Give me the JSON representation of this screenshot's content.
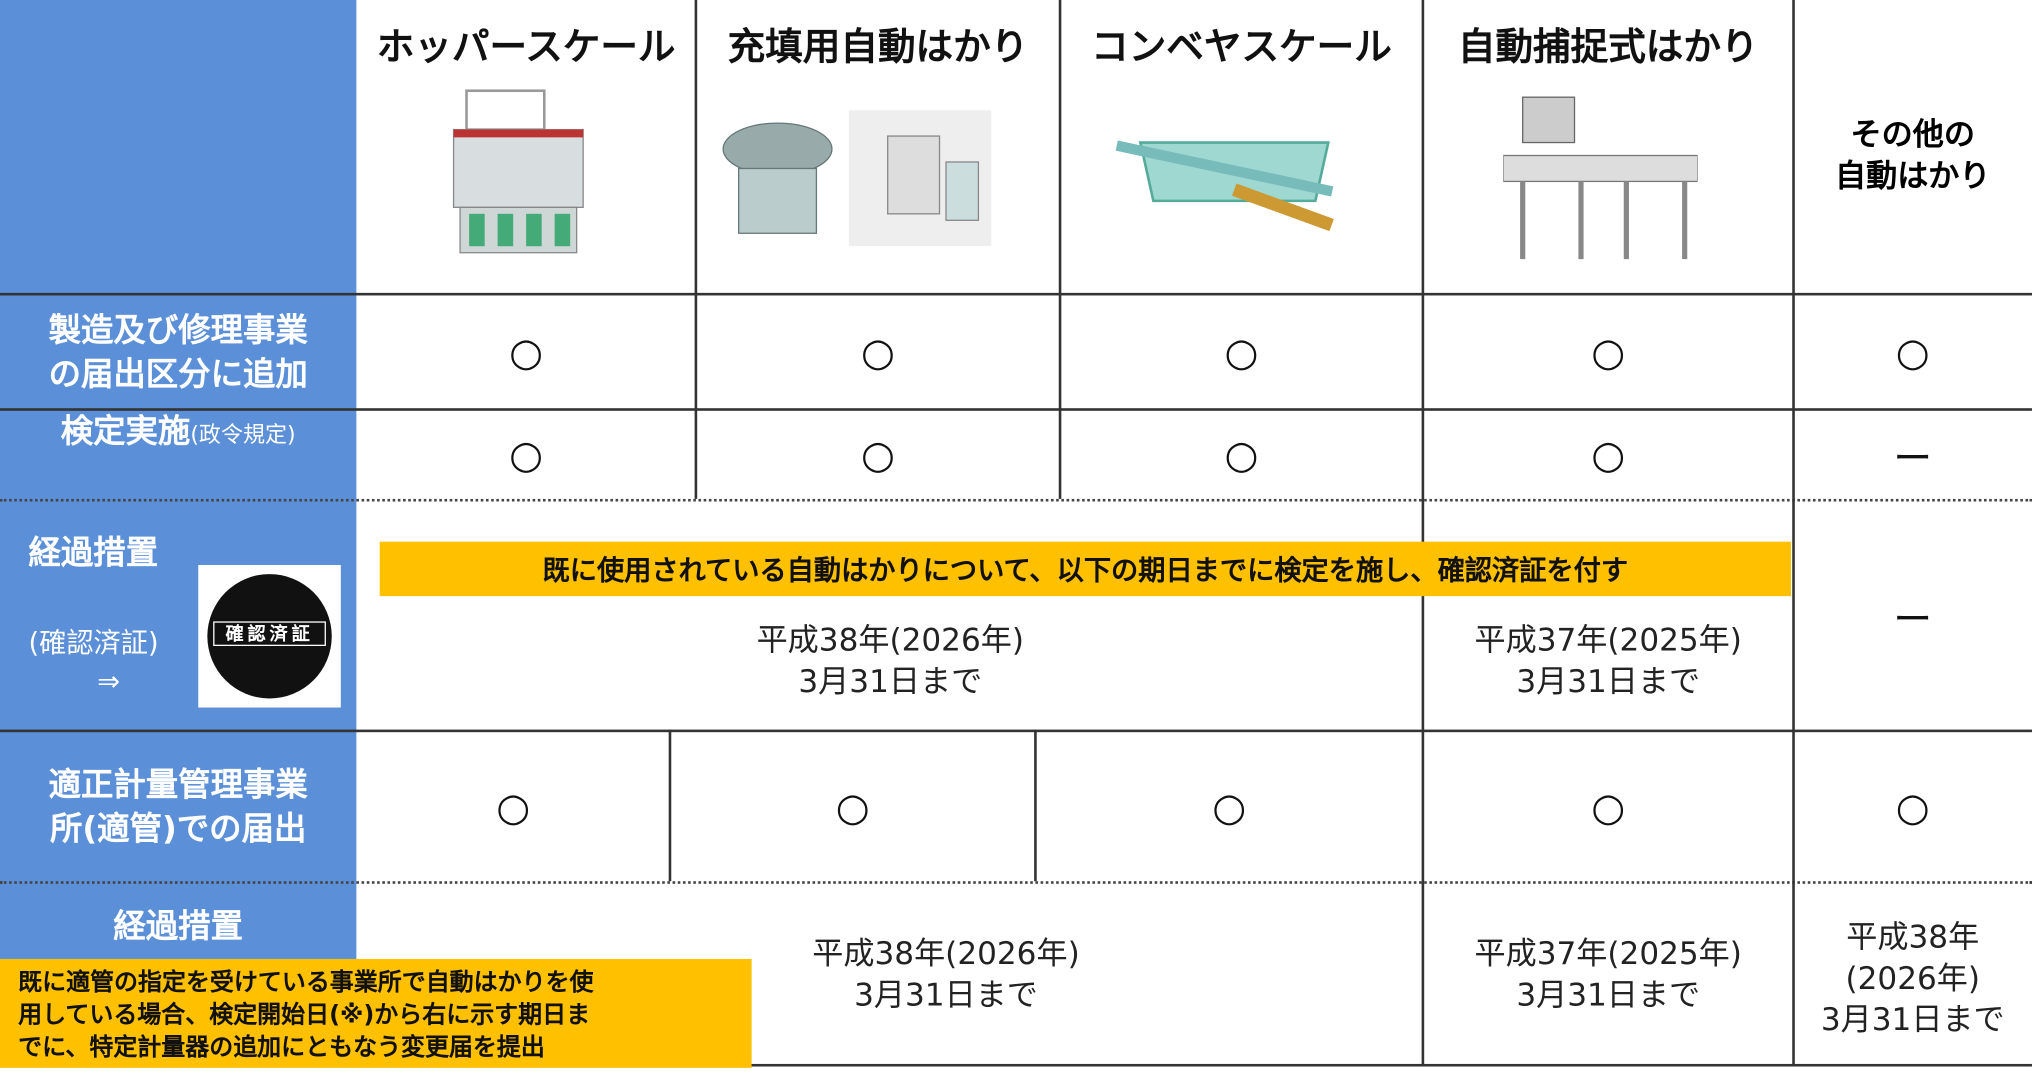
{
  "header": {
    "columns": [
      [
        "ホッパースケール"
      ],
      [
        "充填用自動はかり"
      ],
      [
        "コンベヤスケール"
      ],
      [
        "自動捕捉式はかり"
      ],
      [
        "その他の",
        "自動はかり"
      ]
    ]
  },
  "rows": [
    {
      "label": [
        "製造及び修理事業",
        "の届出区分に追加"
      ],
      "cells": [
        "○",
        "○",
        "○",
        "○",
        "○"
      ]
    },
    {
      "label": "検定実施",
      "label_note": "(政令規定)",
      "cells": [
        "○",
        "○",
        "○",
        "○",
        "ー"
      ]
    },
    {
      "label": "経過措置",
      "label_note": "(確認済証)",
      "arrow": "⇒",
      "certificate": "確認済証",
      "banner": "既に使用されている自動はかりについて、以下の期日までに検定を施し、確認済証を付す",
      "cells": [
        [
          "平成38年(2026年)",
          "3月31日まで"
        ],
        [
          "平成37年(2025年)",
          "3月31日まで"
        ],
        "ー"
      ]
    },
    {
      "label": [
        "適正計量管理事業",
        "所(適管)での届出"
      ],
      "cells": [
        "○",
        "○",
        "○",
        "○",
        "○"
      ]
    },
    {
      "label": "経過措置",
      "note": [
        "既に適管の指定を受けている事業所で自動はかりを使",
        "用している場合、検定開始日(※)から右に示す期日ま",
        "でに、特定計量器の追加にともなう変更届を提出"
      ],
      "cells": [
        [
          "平成38年(2026年)",
          "3月31日まで"
        ],
        [
          "平成37年(2025年)",
          "3月31日まで"
        ],
        [
          "平成38年",
          "(2026年)",
          "3月31日まで"
        ]
      ]
    }
  ]
}
